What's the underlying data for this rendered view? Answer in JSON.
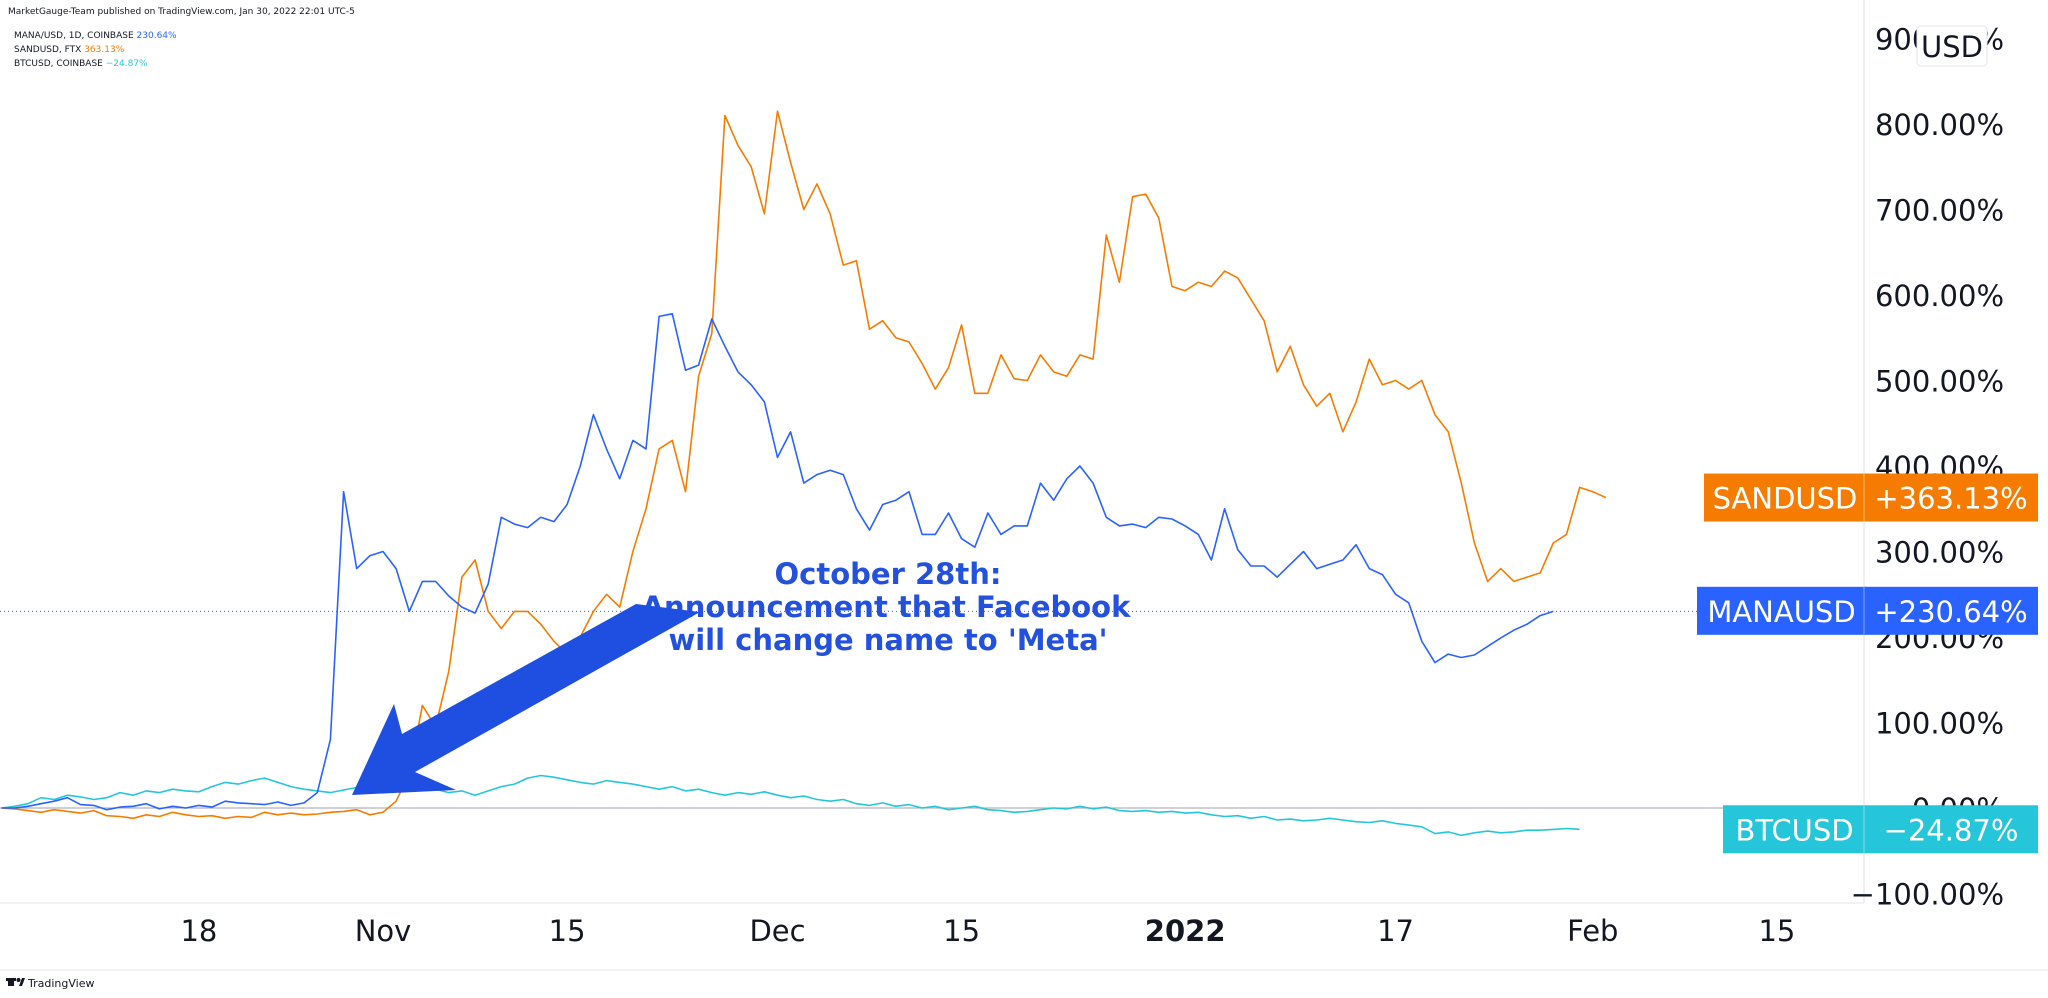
{
  "header": {
    "publisher": "MarketGauge-Team published on TradingView.com, Jan 30, 2022 22:01 UTC-5"
  },
  "legend": [
    {
      "symbol": "MANA/USD, 1D, COINBASE",
      "value": "230.64%",
      "color": "#2962ff"
    },
    {
      "symbol": "SANDUSD, FTX",
      "value": "363.13%",
      "color": "#f57c00"
    },
    {
      "symbol": "BTCUSD, COINBASE",
      "value": "−24.87%",
      "color": "#26c6da"
    }
  ],
  "currency_badge": "USD",
  "annotation": {
    "lines": [
      "October 28th:",
      "Announcement that Facebook",
      "will change name to 'Meta'"
    ],
    "arrow_color": "#1f4fe0"
  },
  "price_tags": [
    {
      "name": "SANDUSD",
      "value": "+363.13%",
      "color": "#f57c00",
      "y_data": 363.13
    },
    {
      "name": "MANAUSD",
      "value": "+230.64%",
      "color": "#2962ff",
      "y_data": 230.64
    },
    {
      "name": "BTCUSD",
      "value": "−24.87%",
      "color": "#26c6da",
      "y_data": -24.87
    }
  ],
  "footer": {
    "logo_text": "TradingView"
  },
  "chart_data": {
    "type": "line",
    "y_unit": "%",
    "ylim": [
      -100,
      900
    ],
    "y_ticks": [
      {
        "value": 900,
        "label": "900.00%"
      },
      {
        "value": 800,
        "label": "800.00%"
      },
      {
        "value": 700,
        "label": "700.00%"
      },
      {
        "value": 600,
        "label": "600.00%"
      },
      {
        "value": 500,
        "label": "500.00%"
      },
      {
        "value": 400,
        "label": "400.00%"
      },
      {
        "value": 300,
        "label": "300.00%"
      },
      {
        "value": 200,
        "label": "200.00%"
      },
      {
        "value": 100,
        "label": "100.00%"
      },
      {
        "value": 0,
        "label": "0.00%"
      },
      {
        "value": -100,
        "label": "−100.00%"
      }
    ],
    "x_ticks": [
      {
        "date": "2021-10-18",
        "label": "18",
        "bold": false
      },
      {
        "date": "2021-11-01",
        "label": "Nov",
        "bold": false
      },
      {
        "date": "2021-11-15",
        "label": "15",
        "bold": false
      },
      {
        "date": "2021-12-01",
        "label": "Dec",
        "bold": false
      },
      {
        "date": "2021-12-15",
        "label": "15",
        "bold": false
      },
      {
        "date": "2022-01-01",
        "label": "2022",
        "bold": true
      },
      {
        "date": "2022-01-17",
        "label": "17",
        "bold": false
      },
      {
        "date": "2022-02-01",
        "label": "Feb",
        "bold": false
      },
      {
        "date": "2022-02-15",
        "label": "15",
        "bold": false
      }
    ],
    "x_range": [
      "2021-10-03",
      "2022-02-22"
    ],
    "annotation_date": "2021-10-28",
    "series": [
      {
        "name": "MANAUSD",
        "color": "#2962ff",
        "x_start": "2021-10-03",
        "values": [
          0,
          0,
          2,
          5,
          8,
          12,
          4,
          3,
          -2,
          1,
          2,
          5,
          -1,
          2,
          0,
          3,
          1,
          8,
          6,
          5,
          4,
          7,
          3,
          6,
          18,
          80,
          370,
          280,
          295,
          300,
          280,
          230,
          265,
          265,
          248,
          235,
          228,
          262,
          340,
          332,
          328,
          340,
          335,
          355,
          400,
          460,
          420,
          385,
          430,
          420,
          575,
          578,
          512,
          518,
          572,
          540,
          510,
          495,
          475,
          410,
          440,
          380,
          390,
          395,
          390,
          350,
          325,
          355,
          360,
          370,
          320,
          320,
          345,
          315,
          305,
          345,
          320,
          330,
          330,
          380,
          360,
          385,
          400,
          380,
          340,
          330,
          332,
          328,
          340,
          338,
          330,
          320,
          290,
          350,
          302,
          283,
          283,
          270,
          285,
          300,
          280,
          285,
          290,
          308,
          280,
          273,
          250,
          240,
          195,
          170,
          180,
          176,
          179,
          189,
          199,
          208,
          215,
          225,
          230
        ]
      },
      {
        "name": "SANDUSD",
        "color": "#f57c00",
        "x_start": "2021-10-03",
        "values": [
          0,
          -1,
          -3,
          -5,
          -2,
          -4,
          -6,
          -3,
          -9,
          -10,
          -12,
          -8,
          -10,
          -5,
          -8,
          -10,
          -9,
          -12,
          -10,
          -11,
          -5,
          -8,
          -6,
          -8,
          -7,
          -5,
          -4,
          -2,
          -8,
          -5,
          8,
          40,
          120,
          95,
          160,
          270,
          290,
          230,
          210,
          230,
          230,
          215,
          195,
          180,
          200,
          230,
          250,
          235,
          300,
          350,
          420,
          430,
          370,
          505,
          555,
          810,
          775,
          750,
          695,
          815,
          755,
          700,
          730,
          695,
          635,
          640,
          560,
          570,
          550,
          545,
          520,
          490,
          515,
          565,
          485,
          485,
          530,
          502,
          500,
          530,
          510,
          505,
          530,
          525,
          670,
          615,
          715,
          718,
          690,
          610,
          605,
          615,
          610,
          628,
          620,
          595,
          570,
          510,
          540,
          495,
          470,
          485,
          440,
          475,
          525,
          495,
          500,
          490,
          500,
          460,
          440,
          380,
          310,
          265,
          280,
          265,
          270,
          275,
          310,
          320,
          375,
          370,
          363
        ]
      },
      {
        "name": "BTCUSD",
        "color": "#26c6da",
        "x_start": "2021-10-03",
        "values": [
          0,
          2,
          5,
          12,
          10,
          15,
          13,
          10,
          12,
          18,
          15,
          20,
          18,
          22,
          20,
          19,
          25,
          30,
          28,
          32,
          35,
          30,
          25,
          22,
          20,
          18,
          21,
          24,
          22,
          26,
          23,
          20,
          25,
          22,
          18,
          20,
          15,
          20,
          25,
          28,
          35,
          38,
          36,
          33,
          30,
          28,
          32,
          30,
          28,
          25,
          22,
          25,
          20,
          22,
          18,
          15,
          18,
          16,
          19,
          15,
          12,
          14,
          10,
          8,
          10,
          5,
          3,
          6,
          2,
          4,
          0,
          2,
          -2,
          0,
          2,
          -2,
          -3,
          -5,
          -4,
          -2,
          0,
          -1,
          2,
          -1,
          1,
          -3,
          -4,
          -3,
          -5,
          -4,
          -6,
          -5,
          -8,
          -10,
          -9,
          -12,
          -10,
          -14,
          -13,
          -15,
          -14,
          -12,
          -14,
          -16,
          -17,
          -15,
          -18,
          -20,
          -22,
          -30,
          -28,
          -32,
          -29,
          -27,
          -29,
          -28,
          -26,
          -26,
          -25,
          -24,
          -24.87
        ]
      }
    ]
  }
}
